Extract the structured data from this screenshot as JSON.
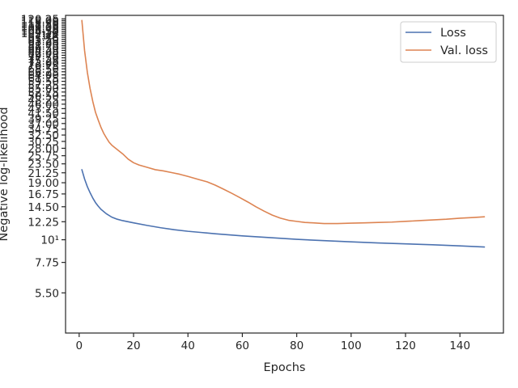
{
  "chart_data": {
    "type": "line",
    "title": "",
    "xlabel": "Epochs",
    "ylabel": "Negative log-likelihood",
    "xlim": [
      -5,
      156
    ],
    "ylim": [
      3.5,
      125
    ],
    "y_scale": "log",
    "grid": false,
    "legend_position": "top-right",
    "x_ticks": [
      0,
      20,
      40,
      60,
      80,
      100,
      120,
      140
    ],
    "y_ticks": [
      {
        "value": 5.5,
        "label": "5.50"
      },
      {
        "value": 7.75,
        "label": "7.75"
      },
      {
        "value": 10,
        "label": "10¹"
      },
      {
        "value": 12.25,
        "label": "12.25"
      },
      {
        "value": 14.5,
        "label": "14.50"
      },
      {
        "value": 16.75,
        "label": "16.75"
      },
      {
        "value": 19.0,
        "label": "19.00"
      },
      {
        "value": 21.25,
        "label": "21.25"
      },
      {
        "value": 23.5,
        "label": "23.50"
      },
      {
        "value": 25.75,
        "label": "25.75"
      },
      {
        "value": 28.0,
        "label": "28.00"
      },
      {
        "value": 30.25,
        "label": "30.25"
      },
      {
        "value": 32.5,
        "label": "32.50"
      },
      {
        "value": 34.75,
        "label": "34.75"
      },
      {
        "value": 37.0,
        "label": "37.00"
      },
      {
        "value": 39.25,
        "label": "39.25"
      },
      {
        "value": 41.5,
        "label": "41.50"
      },
      {
        "value": 43.75,
        "label": "43.75"
      },
      {
        "value": 46.0,
        "label": "46.00"
      },
      {
        "value": 48.25,
        "label": "48.25"
      },
      {
        "value": 50.5,
        "label": "50.50"
      },
      {
        "value": 52.75,
        "label": "52.75"
      },
      {
        "value": 55.0,
        "label": "55.00"
      },
      {
        "value": 57.25,
        "label": "57.25"
      },
      {
        "value": 59.5,
        "label": "59.50"
      },
      {
        "value": 61.75,
        "label": "61.75"
      },
      {
        "value": 64.0,
        "label": "64.00"
      },
      {
        "value": 66.25,
        "label": "66.25"
      },
      {
        "value": 68.5,
        "label": "68.50"
      },
      {
        "value": 70.75,
        "label": "70.75"
      },
      {
        "value": 73.0,
        "label": "73.00"
      },
      {
        "value": 75.25,
        "label": "75.25"
      },
      {
        "value": 77.5,
        "label": "77.50"
      },
      {
        "value": 79.75,
        "label": "79.75"
      },
      {
        "value": 82.0,
        "label": "82.00"
      },
      {
        "value": 84.25,
        "label": "84.25"
      },
      {
        "value": 86.5,
        "label": "86.50"
      },
      {
        "value": 88.75,
        "label": "88.75"
      },
      {
        "value": 91.0,
        "label": "91.00"
      },
      {
        "value": 93.25,
        "label": "93.25"
      },
      {
        "value": 95.5,
        "label": "95.50"
      },
      {
        "value": 97.75,
        "label": "97.75"
      },
      {
        "value": 100,
        "label": "10²"
      },
      {
        "value": 102.25,
        "label": "102.25"
      },
      {
        "value": 104.5,
        "label": "104.50"
      },
      {
        "value": 106.75,
        "label": "106.75"
      },
      {
        "value": 109.0,
        "label": "109.00"
      },
      {
        "value": 111.25,
        "label": "111.25"
      },
      {
        "value": 113.5,
        "label": "113.50"
      },
      {
        "value": 115.75,
        "label": "115.75"
      },
      {
        "value": 118.0,
        "label": "118.00"
      },
      {
        "value": 120.25,
        "label": "120.25"
      }
    ],
    "series": [
      {
        "name": "Loss",
        "color": "#4c72b0",
        "x": [
          1,
          2,
          3,
          4,
          5,
          6,
          7,
          8,
          10,
          12,
          14,
          16,
          20,
          25,
          30,
          35,
          40,
          45,
          50,
          60,
          70,
          80,
          90,
          100,
          110,
          120,
          130,
          140,
          149
        ],
        "y": [
          22.0,
          19.8,
          18.2,
          17.0,
          16.0,
          15.2,
          14.6,
          14.1,
          13.4,
          12.9,
          12.6,
          12.4,
          12.1,
          11.75,
          11.45,
          11.2,
          11.0,
          10.85,
          10.7,
          10.45,
          10.25,
          10.05,
          9.9,
          9.77,
          9.65,
          9.55,
          9.45,
          9.33,
          9.22
        ]
      },
      {
        "name": "Val. loss",
        "color": "#dd8452",
        "x": [
          1,
          2,
          3,
          4,
          5,
          6,
          7,
          8,
          9,
          10,
          11,
          12,
          14,
          16,
          18,
          20,
          22,
          25,
          28,
          31,
          34,
          37,
          40,
          44,
          47,
          50,
          53,
          56,
          59,
          62,
          65,
          68,
          71,
          74,
          77,
          80,
          83,
          86,
          90,
          95,
          100,
          105,
          110,
          115,
          120,
          125,
          130,
          135,
          140,
          145,
          149
        ],
        "y": [
          118.0,
          84.0,
          66.0,
          55.0,
          47.5,
          42.0,
          38.5,
          35.5,
          33.2,
          31.5,
          30.0,
          29.0,
          27.6,
          26.3,
          24.8,
          23.8,
          23.2,
          22.6,
          22.0,
          21.7,
          21.3,
          20.9,
          20.4,
          19.7,
          19.2,
          18.5,
          17.7,
          16.9,
          16.1,
          15.3,
          14.5,
          13.8,
          13.2,
          12.75,
          12.45,
          12.3,
          12.15,
          12.1,
          12.0,
          12.0,
          12.05,
          12.1,
          12.15,
          12.2,
          12.3,
          12.4,
          12.5,
          12.6,
          12.75,
          12.85,
          12.95
        ]
      }
    ]
  }
}
